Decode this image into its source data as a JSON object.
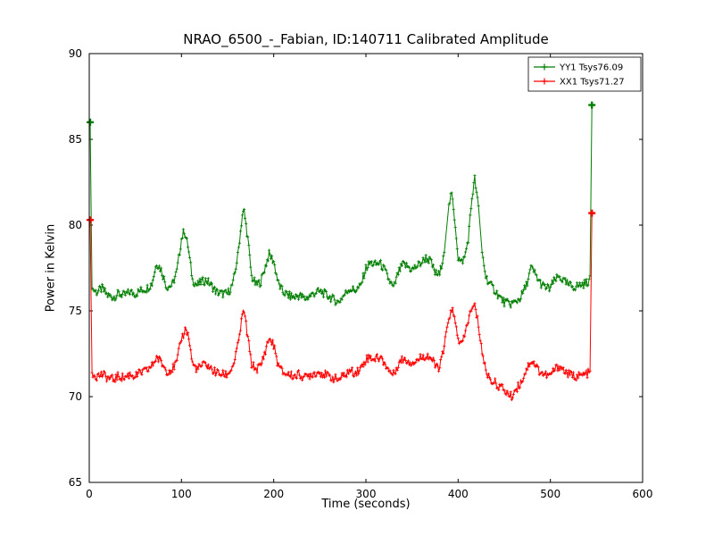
{
  "chart_data": {
    "type": "line",
    "title": "NRAO_6500_-_Fabian, ID:140711 Calibrated Amplitude",
    "xlabel": "Time (seconds)",
    "ylabel": "Power in Kelvin",
    "xlim": [
      0,
      600
    ],
    "ylim": [
      65,
      90
    ],
    "xticks": [
      0,
      100,
      200,
      300,
      400,
      500,
      600
    ],
    "yticks": [
      65,
      70,
      75,
      80,
      85,
      90
    ],
    "grid": false,
    "legend_position": "upper-right",
    "series": [
      {
        "name": "YY1",
        "label": "YY1 Tsys76.09",
        "color": "#007f00",
        "marker": "plus",
        "noise": 0.25,
        "keypoints": [
          [
            1,
            86
          ],
          [
            3,
            76.3
          ],
          [
            8,
            76.1
          ],
          [
            14,
            76.3
          ],
          [
            20,
            75.9
          ],
          [
            26,
            75.8
          ],
          [
            32,
            76.0
          ],
          [
            38,
            75.9
          ],
          [
            44,
            76.1
          ],
          [
            50,
            76.0
          ],
          [
            56,
            76.2
          ],
          [
            62,
            76.3
          ],
          [
            68,
            76.6
          ],
          [
            73,
            77.8
          ],
          [
            78,
            77.4
          ],
          [
            84,
            76.4
          ],
          [
            90,
            76.5
          ],
          [
            95,
            77.3
          ],
          [
            100,
            79.2
          ],
          [
            103,
            79.7
          ],
          [
            107,
            78.8
          ],
          [
            112,
            76.8
          ],
          [
            117,
            76.5
          ],
          [
            122,
            76.7
          ],
          [
            127,
            76.8
          ],
          [
            132,
            76.5
          ],
          [
            138,
            76.1
          ],
          [
            144,
            76.0
          ],
          [
            150,
            76.0
          ],
          [
            156,
            76.6
          ],
          [
            161,
            78.2
          ],
          [
            166,
            80.6
          ],
          [
            168,
            80.8
          ],
          [
            172,
            79.2
          ],
          [
            176,
            77.0
          ],
          [
            181,
            76.5
          ],
          [
            186,
            76.7
          ],
          [
            191,
            77.6
          ],
          [
            195,
            78.3
          ],
          [
            200,
            77.9
          ],
          [
            205,
            76.6
          ],
          [
            210,
            76.1
          ],
          [
            216,
            75.9
          ],
          [
            222,
            75.8
          ],
          [
            228,
            75.9
          ],
          [
            234,
            75.7
          ],
          [
            240,
            75.9
          ],
          [
            246,
            76.1
          ],
          [
            252,
            76.1
          ],
          [
            258,
            75.9
          ],
          [
            264,
            75.7
          ],
          [
            270,
            75.5
          ],
          [
            276,
            75.9
          ],
          [
            282,
            76.3
          ],
          [
            288,
            76.2
          ],
          [
            294,
            76.4
          ],
          [
            300,
            77.5
          ],
          [
            305,
            77.8
          ],
          [
            310,
            77.7
          ],
          [
            315,
            77.8
          ],
          [
            320,
            77.4
          ],
          [
            325,
            76.8
          ],
          [
            330,
            76.3
          ],
          [
            335,
            77.2
          ],
          [
            340,
            77.7
          ],
          [
            345,
            77.6
          ],
          [
            350,
            77.4
          ],
          [
            355,
            77.6
          ],
          [
            360,
            77.8
          ],
          [
            365,
            78.1
          ],
          [
            370,
            77.9
          ],
          [
            375,
            77.2
          ],
          [
            380,
            77.1
          ],
          [
            385,
            78.6
          ],
          [
            390,
            81.2
          ],
          [
            393,
            81.8
          ],
          [
            397,
            80.0
          ],
          [
            400,
            78.1
          ],
          [
            403,
            77.8
          ],
          [
            407,
            78.1
          ],
          [
            411,
            79.2
          ],
          [
            415,
            81.6
          ],
          [
            418,
            82.7
          ],
          [
            422,
            81.0
          ],
          [
            426,
            78.4
          ],
          [
            430,
            77.0
          ],
          [
            435,
            76.5
          ],
          [
            440,
            76.2
          ],
          [
            445,
            75.8
          ],
          [
            450,
            75.5
          ],
          [
            456,
            75.4
          ],
          [
            462,
            75.5
          ],
          [
            468,
            75.8
          ],
          [
            474,
            76.5
          ],
          [
            479,
            77.5
          ],
          [
            483,
            77.2
          ],
          [
            488,
            76.7
          ],
          [
            493,
            76.4
          ],
          [
            499,
            76.3
          ],
          [
            505,
            76.8
          ],
          [
            510,
            77.0
          ],
          [
            515,
            76.7
          ],
          [
            520,
            76.5
          ],
          [
            526,
            76.4
          ],
          [
            532,
            76.5
          ],
          [
            538,
            76.6
          ],
          [
            543,
            76.8
          ],
          [
            545,
            87
          ]
        ]
      },
      {
        "name": "XX1",
        "label": "XX1 Tsys71.27",
        "color": "#ff0000",
        "marker": "plus",
        "noise": 0.25,
        "keypoints": [
          [
            1,
            80.3
          ],
          [
            3,
            71.4
          ],
          [
            8,
            71.2
          ],
          [
            14,
            71.3
          ],
          [
            20,
            71.1
          ],
          [
            26,
            71.0
          ],
          [
            32,
            71.2
          ],
          [
            38,
            71.1
          ],
          [
            44,
            71.3
          ],
          [
            50,
            71.2
          ],
          [
            56,
            71.4
          ],
          [
            62,
            71.5
          ],
          [
            68,
            71.8
          ],
          [
            73,
            72.3
          ],
          [
            78,
            72.0
          ],
          [
            84,
            71.5
          ],
          [
            90,
            71.6
          ],
          [
            95,
            72.0
          ],
          [
            100,
            73.4
          ],
          [
            105,
            74.0
          ],
          [
            108,
            73.4
          ],
          [
            112,
            71.9
          ],
          [
            117,
            71.6
          ],
          [
            122,
            71.8
          ],
          [
            127,
            71.9
          ],
          [
            132,
            71.6
          ],
          [
            138,
            71.4
          ],
          [
            144,
            71.3
          ],
          [
            150,
            71.3
          ],
          [
            156,
            71.8
          ],
          [
            161,
            72.9
          ],
          [
            166,
            74.7
          ],
          [
            168,
            75.0
          ],
          [
            172,
            73.4
          ],
          [
            176,
            71.9
          ],
          [
            181,
            71.6
          ],
          [
            186,
            71.8
          ],
          [
            191,
            72.7
          ],
          [
            195,
            73.4
          ],
          [
            200,
            73.0
          ],
          [
            205,
            71.8
          ],
          [
            210,
            71.4
          ],
          [
            216,
            71.3
          ],
          [
            222,
            71.2
          ],
          [
            228,
            71.3
          ],
          [
            234,
            71.1
          ],
          [
            240,
            71.3
          ],
          [
            246,
            71.4
          ],
          [
            252,
            71.4
          ],
          [
            258,
            71.2
          ],
          [
            264,
            71.1
          ],
          [
            270,
            71.0
          ],
          [
            276,
            71.2
          ],
          [
            282,
            71.5
          ],
          [
            288,
            71.4
          ],
          [
            294,
            71.6
          ],
          [
            300,
            72.2
          ],
          [
            305,
            72.3
          ],
          [
            310,
            72.2
          ],
          [
            315,
            72.3
          ],
          [
            320,
            72.0
          ],
          [
            325,
            71.5
          ],
          [
            330,
            71.3
          ],
          [
            335,
            71.9
          ],
          [
            340,
            72.2
          ],
          [
            345,
            72.1
          ],
          [
            350,
            72.0
          ],
          [
            355,
            72.1
          ],
          [
            360,
            72.3
          ],
          [
            365,
            72.4
          ],
          [
            370,
            72.3
          ],
          [
            375,
            71.8
          ],
          [
            380,
            71.7
          ],
          [
            385,
            72.9
          ],
          [
            390,
            74.7
          ],
          [
            394,
            75.0
          ],
          [
            398,
            74.0
          ],
          [
            402,
            73.0
          ],
          [
            406,
            73.3
          ],
          [
            410,
            74.3
          ],
          [
            414,
            75.0
          ],
          [
            418,
            75.3
          ],
          [
            422,
            74.2
          ],
          [
            426,
            72.6
          ],
          [
            430,
            71.5
          ],
          [
            435,
            71.0
          ],
          [
            440,
            70.8
          ],
          [
            445,
            70.6
          ],
          [
            450,
            70.4
          ],
          [
            455,
            70.1
          ],
          [
            458,
            70.0
          ],
          [
            462,
            70.4
          ],
          [
            468,
            70.8
          ],
          [
            474,
            71.6
          ],
          [
            479,
            72.1
          ],
          [
            483,
            71.9
          ],
          [
            488,
            71.5
          ],
          [
            493,
            71.3
          ],
          [
            499,
            71.2
          ],
          [
            505,
            71.6
          ],
          [
            510,
            71.8
          ],
          [
            515,
            71.5
          ],
          [
            520,
            71.3
          ],
          [
            526,
            71.2
          ],
          [
            532,
            71.2
          ],
          [
            538,
            71.3
          ],
          [
            543,
            71.4
          ],
          [
            545,
            80.7
          ]
        ]
      }
    ]
  }
}
